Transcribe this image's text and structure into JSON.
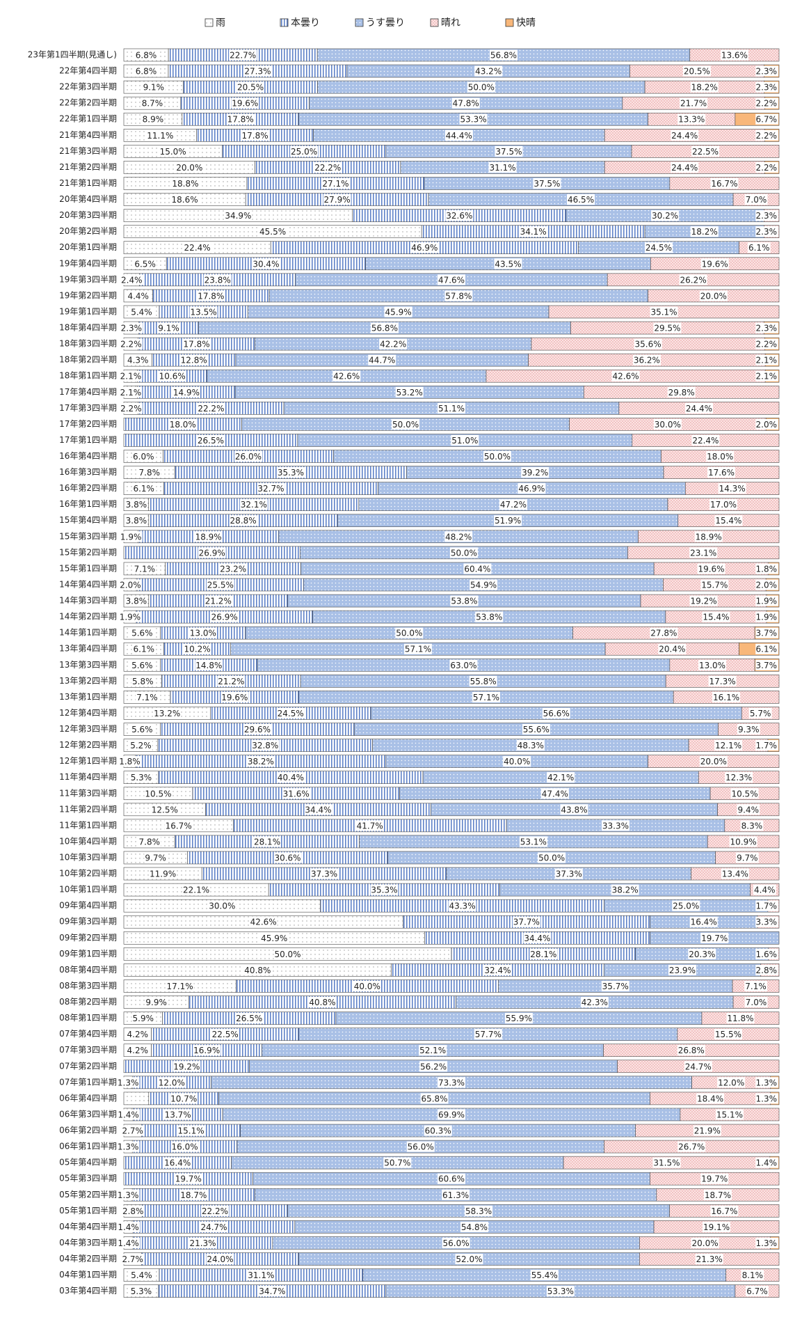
{
  "chart_data": {
    "type": "stacked-bar-100",
    "categories": [
      "23年第1四半期(見通し)",
      "22年第4四半期",
      "22年第3四半期",
      "22年第2四半期",
      "22年第1四半期",
      "21年第4四半期",
      "21年第3四半期",
      "21年第2四半期",
      "21年第1四半期",
      "20年第4四半期",
      "20年第3四半期",
      "20年第2四半期",
      "20年第1四半期",
      "19年第4四半期",
      "19年第3四半期",
      "19年第2四半期",
      "19年第1四半期",
      "18年第4四半期",
      "18年第3四半期",
      "18年第2四半期",
      "18年第1四半期",
      "17年第4四半期",
      "17年第3四半期",
      "17年第2四半期",
      "17年第1四半期",
      "16年第4四半期",
      "16年第3四半期",
      "16年第2四半期",
      "16年第1四半期",
      "15年第4四半期",
      "15年第3四半期",
      "15年第2四半期",
      "15年第1四半期",
      "14年第4四半期",
      "14年第3四半期",
      "14年第2四半期",
      "14年第1四半期",
      "13年第4四半期",
      "13年第3四半期",
      "13年第2四半期",
      "13年第1四半期",
      "12年第4四半期",
      "12年第3四半期",
      "12年第2四半期",
      "12年第1四半期",
      "11年第4四半期",
      "11年第3四半期",
      "11年第2四半期",
      "11年第1四半期",
      "10年第4四半期",
      "10年第3四半期",
      "10年第2四半期",
      "10年第1四半期",
      "09年第4四半期",
      "09年第3四半期",
      "09年第2四半期",
      "09年第1四半期",
      "08年第4四半期",
      "08年第3四半期",
      "08年第2四半期",
      "08年第1四半期",
      "07年第4四半期",
      "07年第3四半期",
      "07年第2四半期",
      "07年第1四半期",
      "06年第4四半期",
      "06年第3四半期",
      "06年第2四半期",
      "06年第1四半期",
      "05年第4四半期",
      "05年第3四半期",
      "05年第2四半期",
      "05年第1四半期",
      "04年第4四半期",
      "04年第3四半期",
      "04年第2四半期",
      "04年第1四半期",
      "03年第4四半期"
    ],
    "series": [
      {
        "name": "雨",
        "color": "#ffffff",
        "values": [
          6.8,
          6.8,
          9.1,
          8.7,
          8.9,
          11.1,
          15.0,
          20.0,
          18.8,
          18.6,
          34.9,
          45.5,
          22.4,
          6.5,
          2.4,
          4.4,
          5.4,
          2.3,
          2.2,
          4.3,
          2.1,
          2.1,
          2.2,
          0,
          0,
          6.0,
          7.8,
          6.1,
          3.8,
          3.8,
          1.9,
          0,
          7.1,
          2.0,
          3.8,
          1.9,
          5.6,
          6.1,
          5.6,
          5.8,
          7.1,
          13.2,
          5.6,
          5.2,
          1.8,
          5.3,
          10.5,
          12.5,
          16.7,
          7.8,
          9.7,
          11.9,
          22.1,
          30.0,
          42.6,
          45.9,
          50.0,
          40.8,
          17.1,
          9.9,
          5.9,
          4.2,
          4.2,
          0,
          1.3,
          3.8,
          1.4,
          2.7,
          1.3,
          0,
          0,
          1.3,
          2.8,
          1.4,
          1.4,
          2.7,
          5.4,
          5.3
        ],
        "value_labels": [
          "6.8%",
          "6.8%",
          "9.1%",
          "8.7%",
          "8.9%",
          "11.1%",
          "15.0%",
          "20.0%",
          "18.8%",
          "18.6%",
          "34.9%",
          "45.5%",
          "22.4%",
          "6.5%",
          "2.4%",
          "4.4%",
          "5.4%",
          "2.3%",
          "2.2%",
          "4.3%",
          "2.1%",
          "2.1%",
          "2.2%",
          null,
          null,
          "6.0%",
          "7.8%",
          "6.1%",
          "3.8%",
          "3.8%",
          "1.9%",
          null,
          "7.1%",
          "2.0%",
          "3.8%",
          "1.9%",
          "5.6%",
          "6.1%",
          "5.6%",
          "5.8%",
          "7.1%",
          "13.2%",
          "5.6%",
          "5.2%",
          "1.8%",
          "5.3%",
          "10.5%",
          "12.5%",
          "16.7%",
          "7.8%",
          "9.7%",
          "11.9%",
          "22.1%",
          "30.0%",
          "42.6%",
          "45.9%",
          "50.0%",
          "40.8%",
          "17.1%",
          "9.9%",
          "5.9%",
          "4.2%",
          "4.2%",
          null,
          "1.3%",
          null,
          "1.4%",
          "2.7%",
          "1.3%",
          null,
          null,
          "1.3%",
          "2.8%",
          "1.4%",
          "1.4%",
          "2.7%",
          "5.4%",
          "5.3%"
        ]
      },
      {
        "name": "本曇り",
        "color": "#5f82c8",
        "values": [
          22.7,
          27.3,
          20.5,
          19.6,
          17.8,
          17.8,
          25.0,
          22.2,
          27.1,
          27.9,
          32.6,
          34.1,
          46.9,
          30.4,
          23.8,
          17.8,
          13.5,
          9.1,
          17.8,
          12.8,
          10.6,
          14.9,
          22.2,
          18.0,
          26.5,
          26.0,
          35.3,
          32.7,
          32.1,
          28.8,
          18.9,
          26.9,
          23.2,
          25.5,
          21.2,
          26.9,
          13.0,
          10.2,
          14.8,
          21.2,
          19.6,
          24.5,
          29.6,
          32.8,
          38.2,
          40.4,
          31.6,
          34.4,
          41.7,
          28.1,
          30.6,
          37.3,
          35.3,
          43.3,
          37.7,
          34.4,
          28.1,
          32.4,
          40.0,
          40.8,
          26.5,
          22.5,
          16.9,
          19.2,
          12.0,
          10.7,
          13.7,
          15.1,
          16.0,
          16.4,
          19.7,
          18.7,
          22.2,
          24.7,
          21.3,
          24.0,
          31.1,
          34.7
        ],
        "value_labels": [
          "22.7%",
          "27.3%",
          "20.5%",
          "19.6%",
          "17.8%",
          "17.8%",
          "25.0%",
          "22.2%",
          "27.1%",
          "27.9%",
          "32.6%",
          "34.1%",
          "46.9%",
          "30.4%",
          "23.8%",
          "17.8%",
          "13.5%",
          "9.1%",
          "17.8%",
          "12.8%",
          "10.6%",
          "14.9%",
          "22.2%",
          "18.0%",
          "26.5%",
          "26.0%",
          "35.3%",
          "32.7%",
          "32.1%",
          "28.8%",
          "18.9%",
          "26.9%",
          "23.2%",
          "25.5%",
          "21.2%",
          "26.9%",
          "13.0%",
          "10.2%",
          "14.8%",
          "21.2%",
          "19.6%",
          "24.5%",
          "29.6%",
          "32.8%",
          "38.2%",
          "40.4%",
          "31.6%",
          "34.4%",
          "41.7%",
          "28.1%",
          "30.6%",
          "37.3%",
          "35.3%",
          "43.3%",
          "37.7%",
          "34.4%",
          "28.1%",
          "32.4%",
          "40.0%",
          "40.8%",
          "26.5%",
          "22.5%",
          "16.9%",
          "19.2%",
          "12.0%",
          "10.7%",
          "13.7%",
          "15.1%",
          "16.0%",
          "16.4%",
          "19.7%",
          "18.7%",
          "22.2%",
          "24.7%",
          "21.3%",
          "24.0%",
          "31.1%",
          "34.7%"
        ]
      },
      {
        "name": "うす曇り",
        "color": "#a9c0e6",
        "values": [
          56.8,
          43.2,
          50.0,
          47.8,
          53.3,
          44.4,
          37.5,
          31.1,
          37.5,
          46.5,
          30.2,
          18.2,
          24.5,
          43.5,
          47.6,
          57.8,
          45.9,
          56.8,
          42.2,
          44.7,
          42.6,
          53.2,
          51.1,
          50.0,
          51.0,
          50.0,
          39.2,
          46.9,
          47.2,
          51.9,
          48.2,
          50.0,
          60.4,
          54.9,
          53.8,
          53.8,
          50.0,
          57.1,
          63.0,
          55.8,
          57.1,
          56.6,
          55.6,
          48.3,
          40.0,
          42.1,
          47.4,
          43.8,
          33.3,
          53.1,
          50.0,
          37.3,
          38.2,
          25.0,
          16.4,
          19.7,
          20.3,
          23.9,
          35.7,
          42.3,
          55.9,
          57.7,
          52.1,
          56.2,
          73.3,
          65.8,
          69.9,
          60.3,
          56.0,
          50.7,
          60.6,
          61.3,
          58.3,
          54.8,
          56.0,
          52.0,
          55.4,
          53.3
        ],
        "value_labels": [
          "56.8%",
          "43.2%",
          "50.0%",
          "47.8%",
          "53.3%",
          "44.4%",
          "37.5%",
          "31.1%",
          "37.5%",
          "46.5%",
          "30.2%",
          "18.2%",
          "24.5%",
          "43.5%",
          "47.6%",
          "57.8%",
          "45.9%",
          "56.8%",
          "42.2%",
          "44.7%",
          "42.6%",
          "53.2%",
          "51.1%",
          "50.0%",
          "51.0%",
          "50.0%",
          "39.2%",
          "46.9%",
          "47.2%",
          "51.9%",
          "48.2%",
          "50.0%",
          "60.4%",
          "54.9%",
          "53.8%",
          "53.8%",
          "50.0%",
          "57.1%",
          "63.0%",
          "55.8%",
          "57.1%",
          "56.6%",
          "55.6%",
          "48.3%",
          "40.0%",
          "42.1%",
          "47.4%",
          "43.8%",
          "33.3%",
          "53.1%",
          "50.0%",
          "37.3%",
          "38.2%",
          "25.0%",
          "16.4%",
          "19.7%",
          "20.3%",
          "23.9%",
          "35.7%",
          "42.3%",
          "55.9%",
          "57.7%",
          "52.1%",
          "56.2%",
          "73.3%",
          "65.8%",
          "69.9%",
          "60.3%",
          "56.0%",
          "50.7%",
          "60.6%",
          "61.3%",
          "58.3%",
          "54.8%",
          "56.0%",
          "52.0%",
          "55.4%",
          "53.3%"
        ]
      },
      {
        "name": "晴れ",
        "color": "#f2c3c3",
        "values": [
          13.6,
          20.5,
          18.2,
          21.7,
          13.3,
          24.4,
          22.5,
          24.4,
          16.7,
          7.0,
          2.3,
          2.3,
          6.1,
          19.6,
          26.2,
          20.0,
          35.1,
          29.5,
          35.6,
          36.2,
          42.6,
          29.8,
          24.4,
          30.0,
          22.4,
          18.0,
          17.6,
          14.3,
          17.0,
          15.4,
          18.9,
          23.1,
          19.6,
          15.7,
          19.2,
          15.4,
          27.8,
          20.4,
          13.0,
          17.3,
          16.1,
          5.7,
          9.3,
          12.1,
          20.0,
          12.3,
          10.5,
          9.4,
          8.3,
          10.9,
          9.7,
          13.4,
          4.4,
          1.7,
          3.3,
          0,
          1.6,
          2.8,
          7.1,
          7.0,
          11.8,
          15.5,
          26.8,
          24.7,
          12.0,
          18.4,
          15.1,
          21.9,
          26.7,
          31.5,
          19.7,
          18.7,
          16.7,
          19.1,
          20.0,
          21.3,
          8.1,
          6.7
        ],
        "value_labels": [
          "13.6%",
          "20.5%",
          "18.2%",
          "21.7%",
          "13.3%",
          "24.4%",
          "22.5%",
          "24.4%",
          "16.7%",
          "7.0%",
          "2.3%",
          "2.3%",
          "6.1%",
          "19.6%",
          "26.2%",
          "20.0%",
          "35.1%",
          "29.5%",
          "35.6%",
          "36.2%",
          "42.6%",
          "29.8%",
          "24.4%",
          "30.0%",
          "22.4%",
          "18.0%",
          "17.6%",
          "14.3%",
          "17.0%",
          "15.4%",
          "18.9%",
          "23.1%",
          "19.6%",
          "15.7%",
          "19.2%",
          "15.4%",
          "27.8%",
          "20.4%",
          "13.0%",
          "17.3%",
          "16.1%",
          "5.7%",
          "9.3%",
          "12.1%",
          "20.0%",
          "12.3%",
          "10.5%",
          "9.4%",
          "8.3%",
          "10.9%",
          "9.7%",
          "13.4%",
          "4.4%",
          "1.7%",
          "3.3%",
          null,
          "1.6%",
          "2.8%",
          "7.1%",
          "7.0%",
          "11.8%",
          "15.5%",
          "26.8%",
          "24.7%",
          "12.0%",
          "18.4%",
          "15.1%",
          "21.9%",
          "26.7%",
          "31.5%",
          "19.7%",
          "18.7%",
          "16.7%",
          "19.1%",
          "20.0%",
          "21.3%",
          "8.1%",
          "6.7%"
        ]
      },
      {
        "name": "快晴",
        "color": "#f8b77a",
        "values": [
          0,
          2.3,
          2.3,
          2.2,
          6.7,
          2.2,
          0,
          2.2,
          0,
          0,
          0,
          0,
          0,
          0,
          0,
          0,
          0,
          2.3,
          2.2,
          2.1,
          2.1,
          0,
          0,
          2.0,
          0,
          0,
          0,
          0,
          0,
          0,
          0,
          0,
          1.8,
          2.0,
          1.9,
          1.9,
          3.7,
          6.1,
          3.7,
          0,
          0,
          0,
          0,
          1.7,
          0,
          0,
          0,
          0,
          0,
          0,
          0,
          0,
          0,
          0,
          0,
          0,
          0,
          0,
          0,
          0,
          0,
          0,
          0,
          0,
          1.3,
          1.3,
          0,
          0,
          0,
          1.4,
          0,
          0,
          0,
          0,
          1.3,
          0,
          0,
          0
        ],
        "value_labels": [
          null,
          "2.3%",
          "2.3%",
          "2.2%",
          "6.7%",
          "2.2%",
          null,
          "2.2%",
          null,
          null,
          null,
          null,
          null,
          null,
          null,
          null,
          null,
          "2.3%",
          "2.2%",
          "2.1%",
          "2.1%",
          null,
          null,
          "2.0%",
          null,
          null,
          null,
          null,
          null,
          null,
          null,
          null,
          "1.8%",
          "2.0%",
          "1.9%",
          "1.9%",
          "3.7%",
          "6.1%",
          "3.7%",
          null,
          null,
          null,
          null,
          "1.7%",
          null,
          null,
          null,
          null,
          null,
          null,
          null,
          null,
          null,
          null,
          null,
          null,
          null,
          null,
          null,
          null,
          null,
          null,
          null,
          null,
          "1.3%",
          "1.3%",
          null,
          null,
          null,
          "1.4%",
          null,
          null,
          null,
          null,
          "1.3%",
          null,
          null,
          null
        ]
      }
    ]
  }
}
